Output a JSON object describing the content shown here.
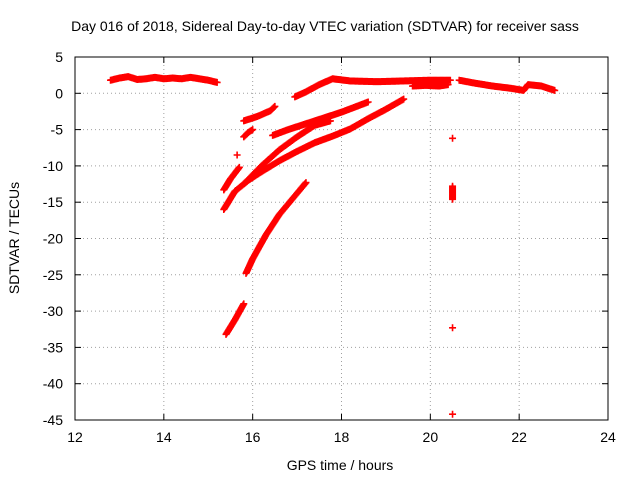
{
  "chart_data": {
    "type": "scatter",
    "title": "Day 016 of 2018, Sidereal Day-to-day VTEC variation (SDTVAR) for receiver sass",
    "xlabel": "GPS time / hours",
    "ylabel": "SDTVAR / TECUs",
    "xlim": [
      12,
      24
    ],
    "ylim": [
      -45,
      5
    ],
    "xticks": [
      12,
      14,
      16,
      18,
      20,
      22,
      24
    ],
    "yticks": [
      5,
      0,
      -5,
      -10,
      -15,
      -20,
      -25,
      -30,
      -35,
      -40,
      -45
    ],
    "grid": true,
    "grid_style": "dotted",
    "marker": "plus",
    "color": "#ff0000",
    "series": [
      {
        "points": [
          [
            12.8,
            1.8
          ],
          [
            13.0,
            2.1
          ],
          [
            13.2,
            2.3
          ],
          [
            13.4,
            1.9
          ],
          [
            13.6,
            2.0
          ],
          [
            13.8,
            2.2
          ],
          [
            14.0,
            2.0
          ],
          [
            14.2,
            2.1
          ],
          [
            14.4,
            2.0
          ],
          [
            14.6,
            2.2
          ],
          [
            14.8,
            2.0
          ],
          [
            15.0,
            1.8
          ],
          [
            15.2,
            1.5
          ]
        ]
      },
      {
        "points": [
          [
            15.35,
            -13.3
          ],
          [
            15.5,
            -11.8
          ],
          [
            15.7,
            -10.2
          ]
        ]
      },
      {
        "points": [
          [
            15.35,
            -16.0
          ],
          [
            15.6,
            -13.5
          ],
          [
            15.9,
            -12.0
          ],
          [
            16.2,
            -10.8
          ],
          [
            16.6,
            -9.3
          ],
          [
            17.0,
            -8.0
          ],
          [
            17.4,
            -6.8
          ],
          [
            17.8,
            -5.9
          ],
          [
            18.2,
            -4.9
          ],
          [
            18.6,
            -3.5
          ],
          [
            19.0,
            -2.2
          ],
          [
            19.4,
            -0.8
          ]
        ]
      },
      {
        "points": [
          [
            15.4,
            -33.2
          ],
          [
            15.6,
            -31.2
          ],
          [
            15.8,
            -29.0
          ]
        ]
      },
      {
        "points": [
          [
            15.85,
            -24.8
          ],
          [
            16.0,
            -22.8
          ],
          [
            16.3,
            -19.5
          ],
          [
            16.6,
            -16.7
          ],
          [
            16.9,
            -14.5
          ],
          [
            17.2,
            -12.3
          ]
        ]
      },
      {
        "points": [
          [
            15.8,
            -12.5
          ],
          [
            16.2,
            -10.0
          ],
          [
            16.6,
            -7.8
          ],
          [
            17.0,
            -6.0
          ],
          [
            17.4,
            -4.4
          ],
          [
            17.75,
            -3.8
          ]
        ]
      },
      {
        "points": [
          [
            16.45,
            -5.8
          ],
          [
            16.8,
            -5.0
          ],
          [
            17.2,
            -4.2
          ],
          [
            17.6,
            -3.4
          ],
          [
            18.0,
            -2.6
          ],
          [
            18.6,
            -1.2
          ]
        ]
      },
      {
        "points": [
          [
            15.8,
            -6.0
          ],
          [
            15.9,
            -5.4
          ],
          [
            16.0,
            -5.0
          ]
        ]
      },
      {
        "points": [
          [
            15.8,
            -3.8
          ],
          [
            16.1,
            -3.2
          ],
          [
            16.4,
            -2.4
          ],
          [
            16.5,
            -1.8
          ]
        ]
      },
      {
        "points": [
          [
            15.65,
            -8.5
          ]
        ]
      },
      {
        "points": [
          [
            16.95,
            -0.5
          ],
          [
            17.2,
            0.2
          ],
          [
            17.5,
            1.2
          ],
          [
            17.8,
            2.0
          ],
          [
            18.2,
            1.7
          ],
          [
            18.8,
            1.6
          ],
          [
            19.4,
            1.7
          ],
          [
            20.0,
            1.8
          ],
          [
            20.45,
            1.8
          ]
        ]
      },
      {
        "points": [
          [
            19.6,
            1.0
          ],
          [
            19.9,
            1.1
          ],
          [
            20.2,
            1.0
          ],
          [
            20.4,
            1.2
          ]
        ]
      },
      {
        "points": [
          [
            20.5,
            -6.2
          ],
          [
            20.5,
            -12.8
          ],
          [
            20.5,
            -14.6
          ],
          [
            20.5,
            -32.3
          ],
          [
            20.5,
            -44.2
          ]
        ]
      },
      {
        "points": [
          [
            20.65,
            1.8
          ],
          [
            21.0,
            1.4
          ],
          [
            21.4,
            1.0
          ],
          [
            21.8,
            0.7
          ],
          [
            22.1,
            0.4
          ],
          [
            22.2,
            1.2
          ],
          [
            22.5,
            1.0
          ],
          [
            22.8,
            0.4
          ]
        ]
      }
    ]
  }
}
